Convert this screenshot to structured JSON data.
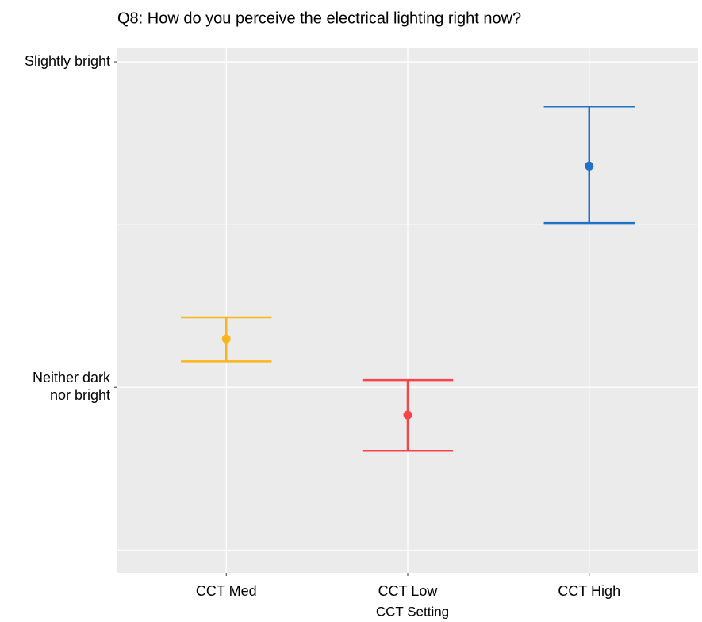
{
  "chart_data": {
    "type": "errorbar",
    "title": "Q8: How do you perceive the electrical lighting right now?",
    "x_label": "CCT Setting",
    "categories": [
      "CCT Med",
      "CCT Low",
      "CCT High"
    ],
    "values": [
      4.149,
      3.915,
      4.68
    ],
    "lower": [
      4.08,
      3.805,
      4.505
    ],
    "upper": [
      4.215,
      4.022,
      4.863
    ],
    "colors": [
      "#fbb51a",
      "#f8434a",
      "#1f72c5"
    ],
    "ylim": [
      3.43,
      5.044
    ],
    "yticks": [
      {
        "value": 5,
        "label": "Slightly bright"
      },
      {
        "value": 4,
        "label": "Neither dark\nnor bright"
      }
    ],
    "minor_yticks": [
      4.5,
      3.5
    ],
    "grid": true
  }
}
